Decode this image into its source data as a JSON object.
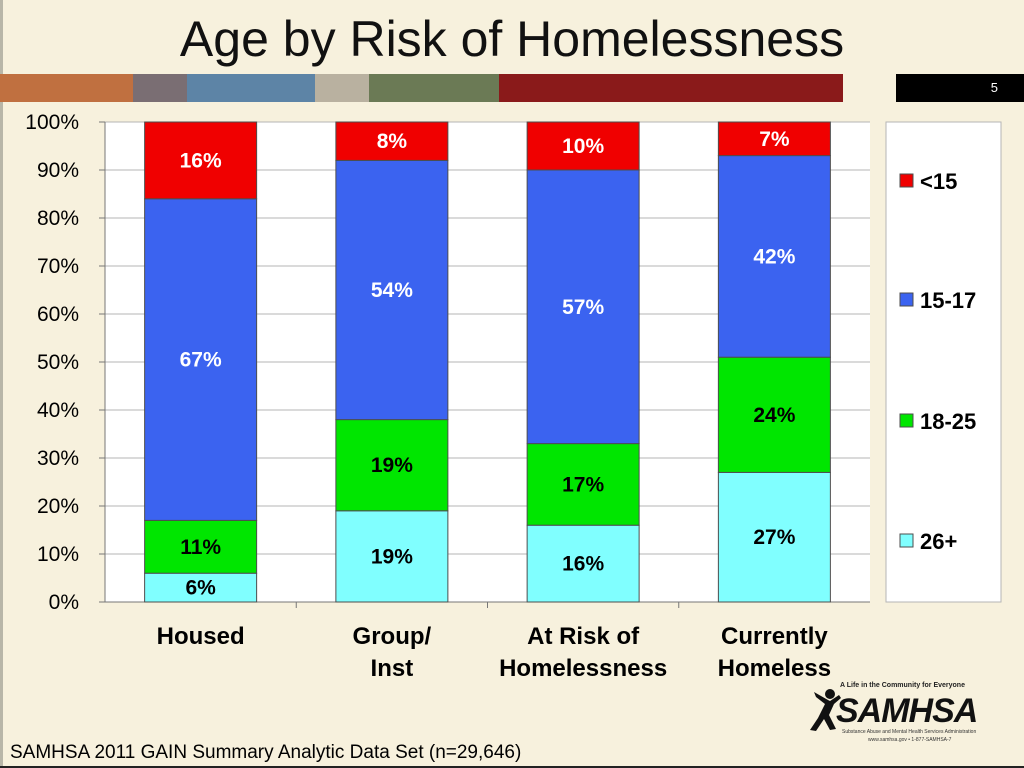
{
  "slide": {
    "title": "Age by Risk of Homelessness",
    "page_number": "5",
    "footer": "SAMHSA 2011 GAIN Summary Analytic Data Set (n=29,646)",
    "band_colors": [
      "#c07040",
      "#7a6e73",
      "#5d84a6",
      "#b9b1a0",
      "#6b7a55",
      "#8a1a1a"
    ]
  },
  "logo": {
    "tagline": "A Life in the Community for Everyone",
    "name": "SAMHSA",
    "subtitle": "Substance Abuse and Mental Health Services Administration",
    "web": "www.samhsa.gov • 1-877-SAMHSA-7"
  },
  "chart_data": {
    "type": "bar",
    "stacked": true,
    "categories": [
      "Housed",
      "Group/ Inst",
      "At Risk of Homelessness",
      "Currently Homeless"
    ],
    "category_lines": [
      [
        "Housed"
      ],
      [
        "Group/",
        "Inst"
      ],
      [
        "At Risk of",
        "Homelessness"
      ],
      [
        "Currently",
        "Homeless"
      ]
    ],
    "series": [
      {
        "name": "26+",
        "color": "#80ffff",
        "values": [
          6,
          19,
          16,
          27
        ],
        "labels": [
          "6%",
          "19%",
          "16%",
          "27%"
        ],
        "label_color": "#000000"
      },
      {
        "name": "18-25",
        "color": "#00e600",
        "values": [
          11,
          19,
          17,
          24
        ],
        "labels": [
          "11%",
          "19%",
          "17%",
          "24%"
        ],
        "label_color": "#000000"
      },
      {
        "name": "15-17",
        "color": "#3b63f0",
        "values": [
          67,
          54,
          57,
          42
        ],
        "labels": [
          "67%",
          "54%",
          "57%",
          "42%"
        ],
        "label_color": "#ffffff"
      },
      {
        "name": "<15",
        "color": "#f00000",
        "values": [
          16,
          8,
          10,
          7
        ],
        "labels": [
          "16%",
          "8%",
          "10%",
          "7%"
        ],
        "label_color": "#ffffff"
      }
    ],
    "legend_order": [
      "<15",
      "15-17",
      "18-25",
      "26+"
    ],
    "ylim": [
      0,
      100
    ],
    "yticks": [
      "0%",
      "10%",
      "20%",
      "30%",
      "40%",
      "50%",
      "60%",
      "70%",
      "80%",
      "90%",
      "100%"
    ],
    "grid": true,
    "legend_position": "right"
  }
}
